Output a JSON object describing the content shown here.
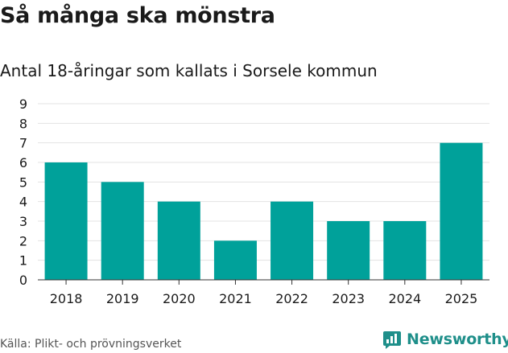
{
  "header": {
    "title": "Så många ska mönstra",
    "subtitle": "Antal 18-åringar som kallats i Sorsele kommun"
  },
  "footer": {
    "source": "Källa: Plikt- och prövningsverket",
    "brand": "Newsworthy"
  },
  "colors": {
    "bar": "#00a19a",
    "grid": "#e3e3e3",
    "axis": "#333333",
    "brand": "#1f8f8a"
  },
  "chart_data": {
    "type": "bar",
    "title": "Så många ska mönstra",
    "subtitle": "Antal 18-åringar som kallats i Sorsele kommun",
    "categories": [
      "2018",
      "2019",
      "2020",
      "2021",
      "2022",
      "2023",
      "2024",
      "2025"
    ],
    "values": [
      6,
      5,
      4,
      2,
      4,
      3,
      3,
      7
    ],
    "xlabel": "",
    "ylabel": "",
    "ylim": [
      0,
      9
    ],
    "yticks": [
      0,
      1,
      2,
      3,
      4,
      5,
      6,
      7,
      8,
      9
    ],
    "grid": true,
    "legend": "none"
  }
}
